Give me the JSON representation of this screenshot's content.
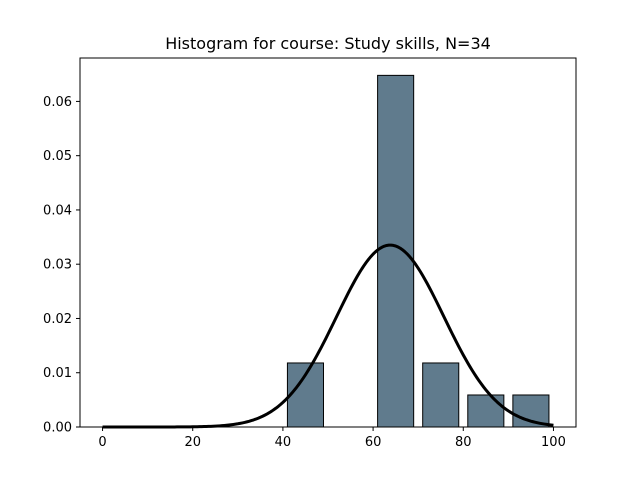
{
  "chart_data": {
    "type": "bar",
    "title": "Histogram for course: Study skills,  N=34",
    "xlabel": "",
    "ylabel": "",
    "xlim": [
      -5,
      105
    ],
    "ylim": [
      0,
      0.068
    ],
    "xticks": [
      0,
      20,
      40,
      60,
      80,
      100
    ],
    "yticks": [
      0.0,
      0.01,
      0.02,
      0.03,
      0.04,
      0.05,
      0.06
    ],
    "bins": [
      {
        "x0": 41,
        "x1": 49,
        "value": 0.0118
      },
      {
        "x0": 61,
        "x1": 69,
        "value": 0.0648
      },
      {
        "x0": 71,
        "x1": 79,
        "value": 0.0118
      },
      {
        "x0": 81,
        "x1": 89,
        "value": 0.0059
      },
      {
        "x0": 91,
        "x1": 99,
        "value": 0.0059
      }
    ],
    "curve": {
      "type": "normal-pdf",
      "mean": 63.8,
      "sd": 11.9,
      "x_range": [
        0,
        100
      ]
    },
    "bar_color": "#607b8d",
    "bar_edge_color": "#000000",
    "curve_color": "#000000",
    "grid": false,
    "legend": "none"
  }
}
